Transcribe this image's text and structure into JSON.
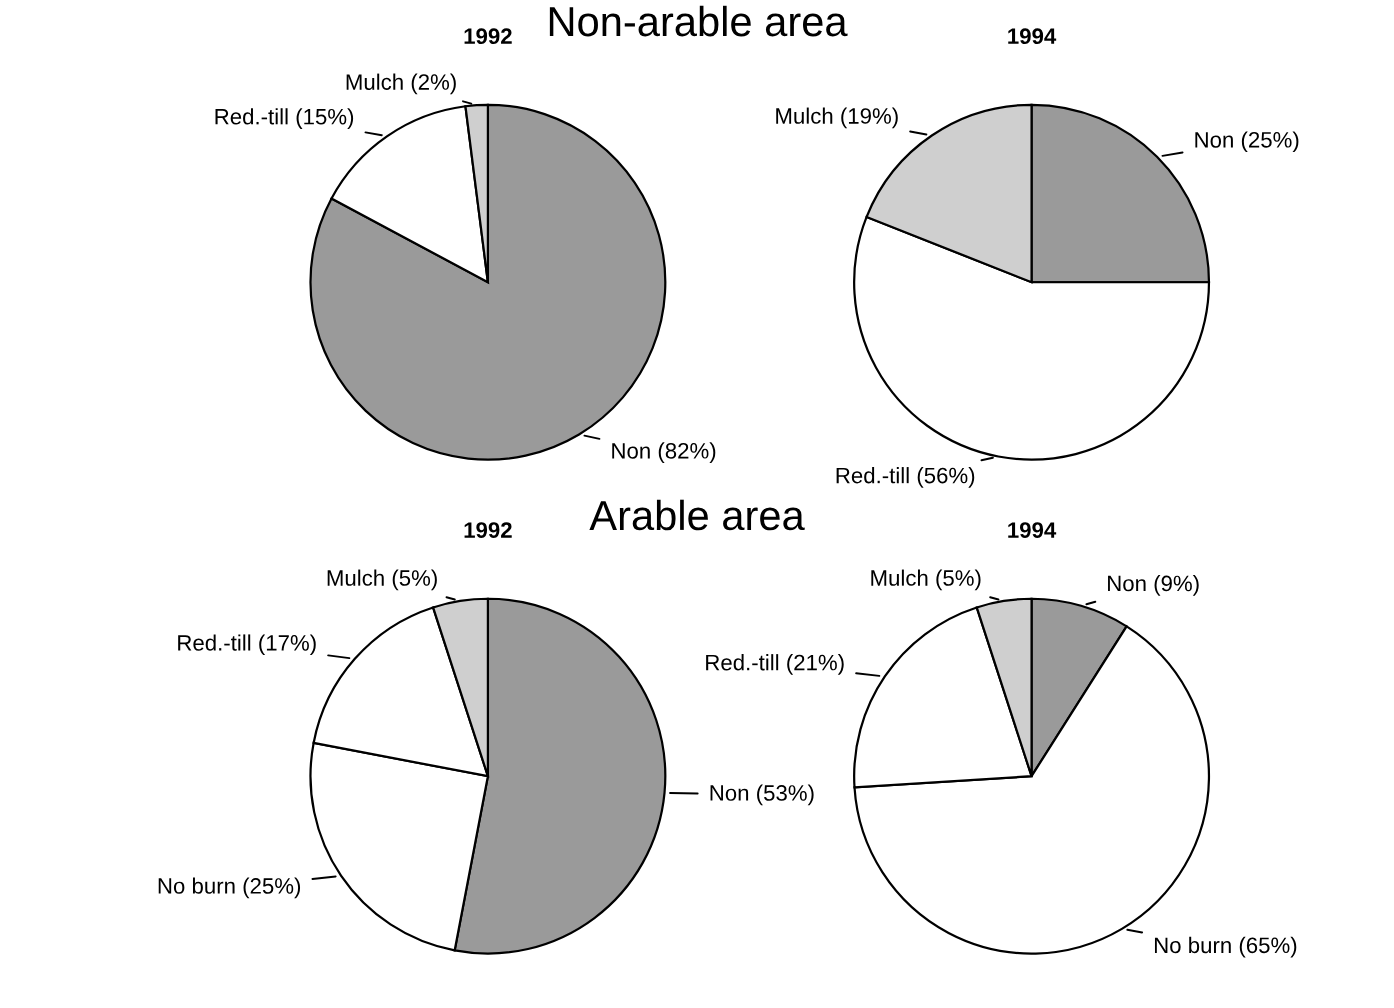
{
  "chart_data": [
    {
      "type": "pie",
      "title": "1992",
      "subtitle": "Non-arable area",
      "categories": [
        "Non",
        "Red.-till",
        "Mulch"
      ],
      "values": [
        82,
        15,
        2
      ],
      "value_labels": [
        "(82%)",
        "(15%)",
        "(2%)"
      ],
      "colors": [
        "#9a9a9a",
        "#ffffff",
        "#cfcfcf"
      ]
    },
    {
      "type": "pie",
      "title": "1994",
      "categories": [
        "Non",
        "Red.-till",
        "Mulch"
      ],
      "values": [
        25,
        56,
        19
      ],
      "value_labels": [
        "(25%)",
        "(56%)",
        "(19%)"
      ],
      "colors": [
        "#9a9a9a",
        "#ffffff",
        "#cfcfcf"
      ]
    },
    {
      "type": "pie",
      "title": "1992",
      "subtitle": "Arable area",
      "categories": [
        "Non",
        "No burn",
        "Red.-till",
        "Mulch"
      ],
      "values": [
        53,
        25,
        17,
        5
      ],
      "value_labels": [
        "(53%)",
        "(25%)",
        "(17%)",
        "(5%)"
      ],
      "colors": [
        "#9a9a9a",
        "#ffffff",
        "#ffffff",
        "#cfcfcf"
      ]
    },
    {
      "type": "pie",
      "title": "1994",
      "categories": [
        "Non",
        "No burn",
        "Red.-till",
        "Mulch"
      ],
      "values": [
        9,
        65,
        21,
        5
      ],
      "value_labels": [
        "(9%)",
        "(65%)",
        "(21%)",
        "(5%)"
      ],
      "colors": [
        "#9a9a9a",
        "#ffffff",
        "#ffffff",
        "#cfcfcf"
      ]
    }
  ]
}
